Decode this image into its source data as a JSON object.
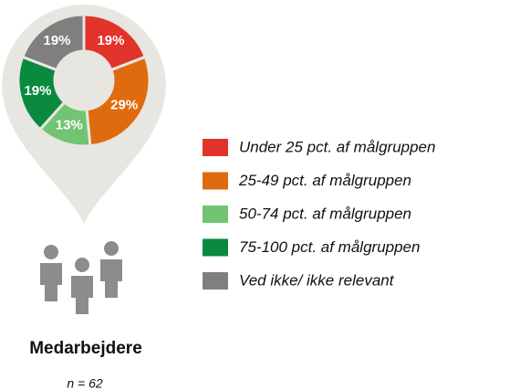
{
  "chart_data": {
    "type": "pie",
    "title": "Medarbejdere",
    "subtitle": "n = 62",
    "categories": [
      "Under 25 pct. af målgruppen",
      "25-49 pct. af målgruppen",
      "50-74 pct. af målgruppen",
      "75-100 pct. af målgruppen",
      "Ved ikke/ ikke relevant"
    ],
    "values": [
      19,
      29,
      13,
      19,
      19
    ],
    "value_labels": [
      "19%",
      "29%",
      "13%",
      "19%",
      "19%"
    ],
    "colors": [
      "#e2332a",
      "#e06a0e",
      "#72c472",
      "#0a8a3e",
      "#7f7f7f"
    ],
    "legend": "right"
  }
}
